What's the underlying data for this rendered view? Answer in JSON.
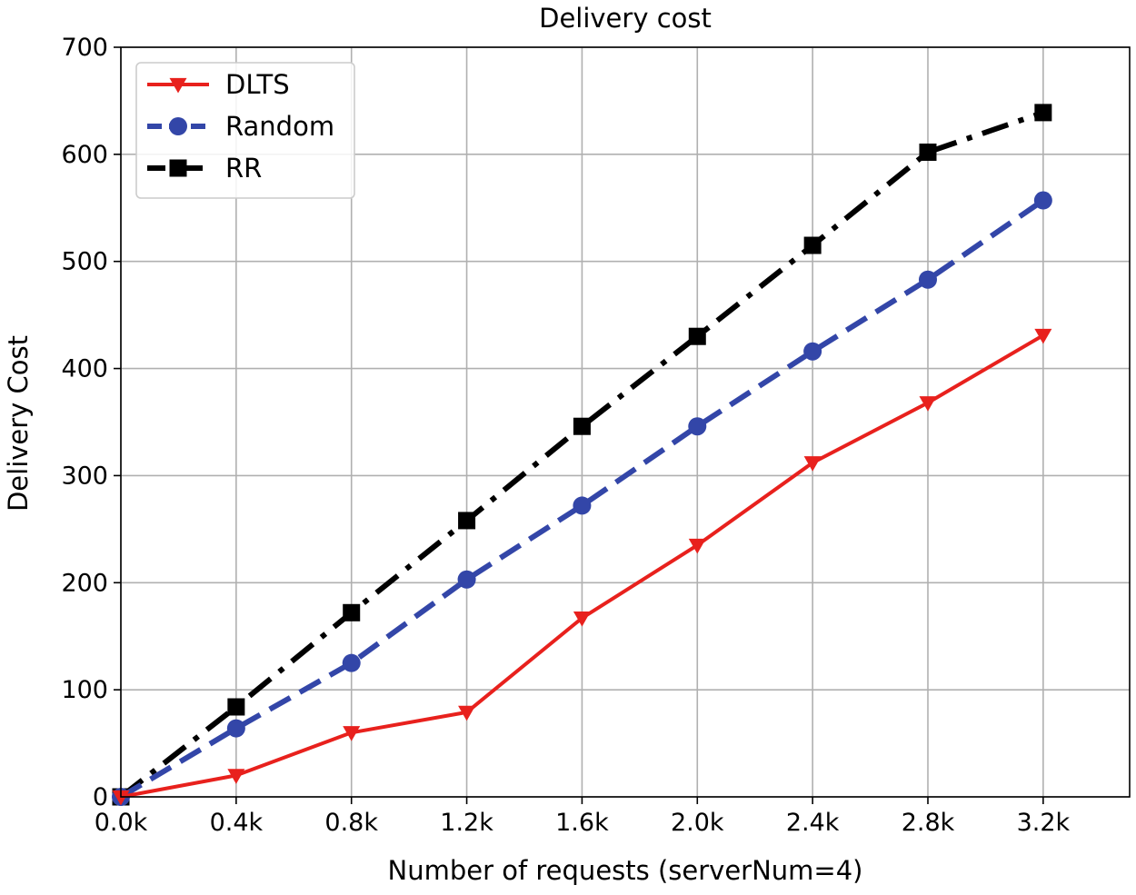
{
  "chart_data": {
    "type": "line",
    "title": "Delivery cost",
    "xlabel": "Number of requests (serverNum=4)",
    "ylabel": "Delivery Cost",
    "x": [
      0,
      400,
      800,
      1200,
      1600,
      2000,
      2400,
      2800,
      3200
    ],
    "x_tick_labels": [
      "0.0k",
      "0.4k",
      "0.8k",
      "1.2k",
      "1.6k",
      "2.0k",
      "2.4k",
      "2.8k",
      "3.2k"
    ],
    "y_ticks": [
      0,
      100,
      200,
      300,
      400,
      500,
      600,
      700
    ],
    "xlim": [
      0,
      3500
    ],
    "ylim": [
      0,
      700
    ],
    "grid": true,
    "legend_position": "top-left",
    "series": [
      {
        "name": "DLTS",
        "color": "#e8211d",
        "marker": "triangle-down",
        "linestyle": "solid",
        "values": [
          0,
          20,
          60,
          79,
          167,
          235,
          312,
          368,
          431
        ]
      },
      {
        "name": "Random",
        "color": "#3346a8",
        "marker": "circle",
        "linestyle": "dashed",
        "values": [
          0,
          64,
          125,
          203,
          272,
          346,
          416,
          483,
          557
        ]
      },
      {
        "name": "RR",
        "color": "#000000",
        "marker": "square",
        "linestyle": "dash-dot",
        "values": [
          0,
          84,
          172,
          258,
          346,
          430,
          515,
          602,
          639
        ]
      }
    ]
  }
}
